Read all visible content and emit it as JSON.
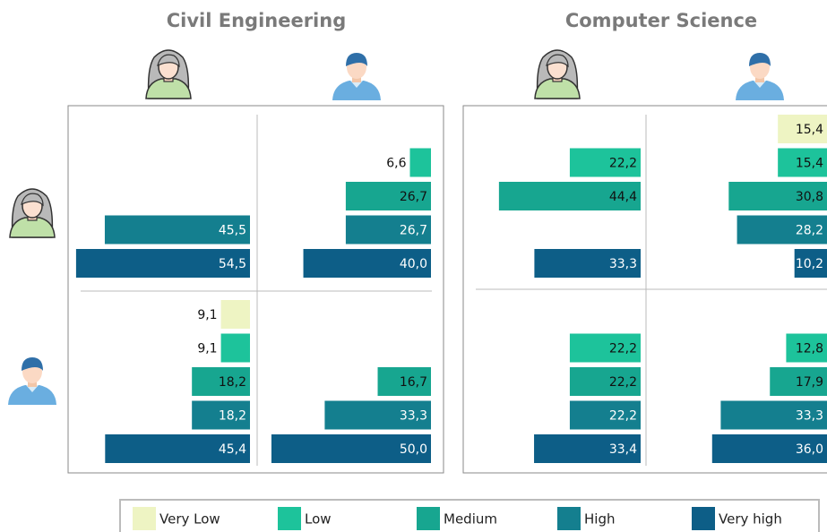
{
  "chart_data": {
    "type": "bar",
    "orientation": "horizontal",
    "xlim": [
      0,
      57
    ],
    "legend": [
      {
        "name": "Very Low",
        "color": "#eef4c3"
      },
      {
        "name": "Low",
        "color": "#1dc39b"
      },
      {
        "name": "Medium",
        "color": "#17a690"
      },
      {
        "name": "High",
        "color": "#147f8f"
      },
      {
        "name": "Very high",
        "color": "#0d5e87"
      }
    ],
    "panels": [
      {
        "title": "Civil Engineering",
        "cells": [
          {
            "values": [
              null,
              null,
              null,
              45.5,
              54.5
            ],
            "value_labels": [
              null,
              null,
              null,
              "45,5",
              "54,5"
            ]
          },
          {
            "values": [
              null,
              6.6,
              26.7,
              26.7,
              40.0
            ],
            "value_labels": [
              null,
              "6,6",
              "26,7",
              "26,7",
              "40,0"
            ]
          },
          {
            "values": [
              9.1,
              9.1,
              18.2,
              18.2,
              45.4
            ],
            "value_labels": [
              "9,1",
              "9,1",
              "18,2",
              "18,2",
              "45,4"
            ]
          },
          {
            "values": [
              null,
              null,
              16.7,
              33.3,
              50.0
            ],
            "value_labels": [
              null,
              null,
              "16,7",
              "33,3",
              "50,0"
            ]
          }
        ]
      },
      {
        "title": "Computer Science",
        "cells": [
          {
            "values": [
              null,
              22.2,
              44.4,
              null,
              33.3
            ],
            "value_labels": [
              null,
              "22,2",
              "44,4",
              null,
              "33,3"
            ]
          },
          {
            "values": [
              15.4,
              15.4,
              30.8,
              28.2,
              10.2
            ],
            "value_labels": [
              "15,4",
              "15,4",
              "30,8",
              "28,2",
              "10,2"
            ]
          },
          {
            "values": [
              null,
              22.2,
              22.2,
              22.2,
              33.4
            ],
            "value_labels": [
              null,
              "22,2",
              "22,2",
              "22,2",
              "33,4"
            ]
          },
          {
            "values": [
              null,
              12.8,
              17.9,
              33.3,
              36.0
            ],
            "value_labels": [
              null,
              "12,8",
              "17,9",
              "33,3",
              "36,0"
            ]
          }
        ]
      }
    ]
  }
}
